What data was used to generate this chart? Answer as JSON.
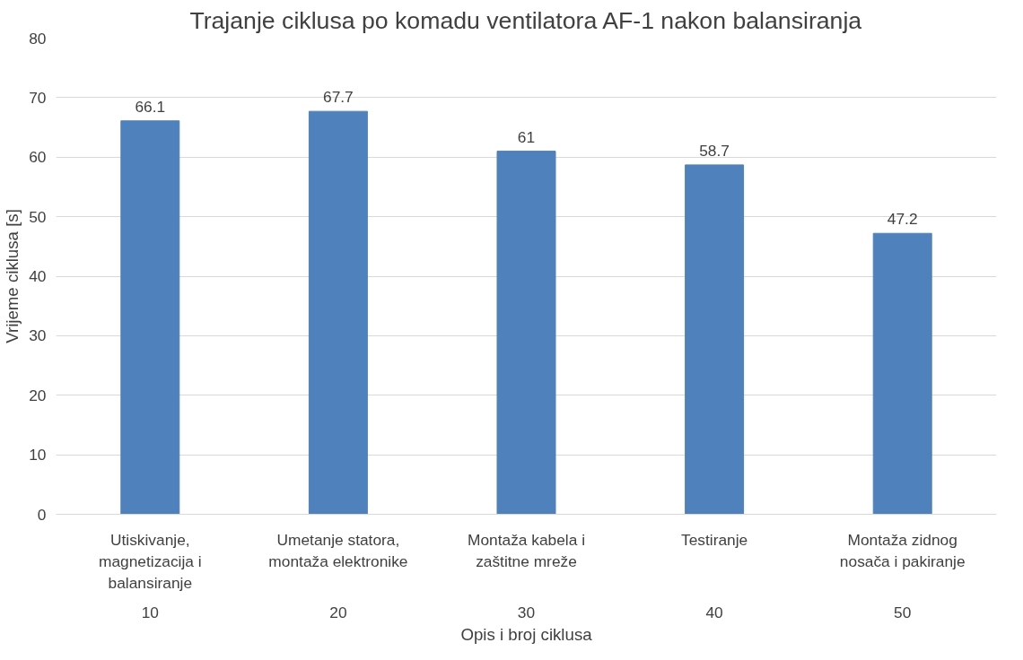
{
  "chart_data": {
    "type": "bar",
    "title": "Trajanje ciklusa po komadu ventilatora AF-1 nakon balansiranja",
    "xlabel": "Opis i broj ciklusa",
    "ylabel": "Vrijeme ciklusa [s]",
    "categories": [
      "Utiskivanje, magnetizacija i balansiranje",
      "Umetanje statora, montaža elektronike",
      "Montaža kabela i zaštitne mreže",
      "Testiranje",
      "Montaža zidnog nosača i pakiranje"
    ],
    "values": [
      66.1,
      67.7,
      61,
      58.7,
      47.2
    ],
    "color": "#4f81bd",
    "ylim": [
      0,
      80
    ],
    "yticks": [
      0,
      10,
      20,
      30,
      40,
      50,
      60,
      70,
      80
    ],
    "grid": "y",
    "data_labels": true,
    "annotations": [
      "10",
      "20",
      "30",
      "40",
      "50"
    ]
  }
}
